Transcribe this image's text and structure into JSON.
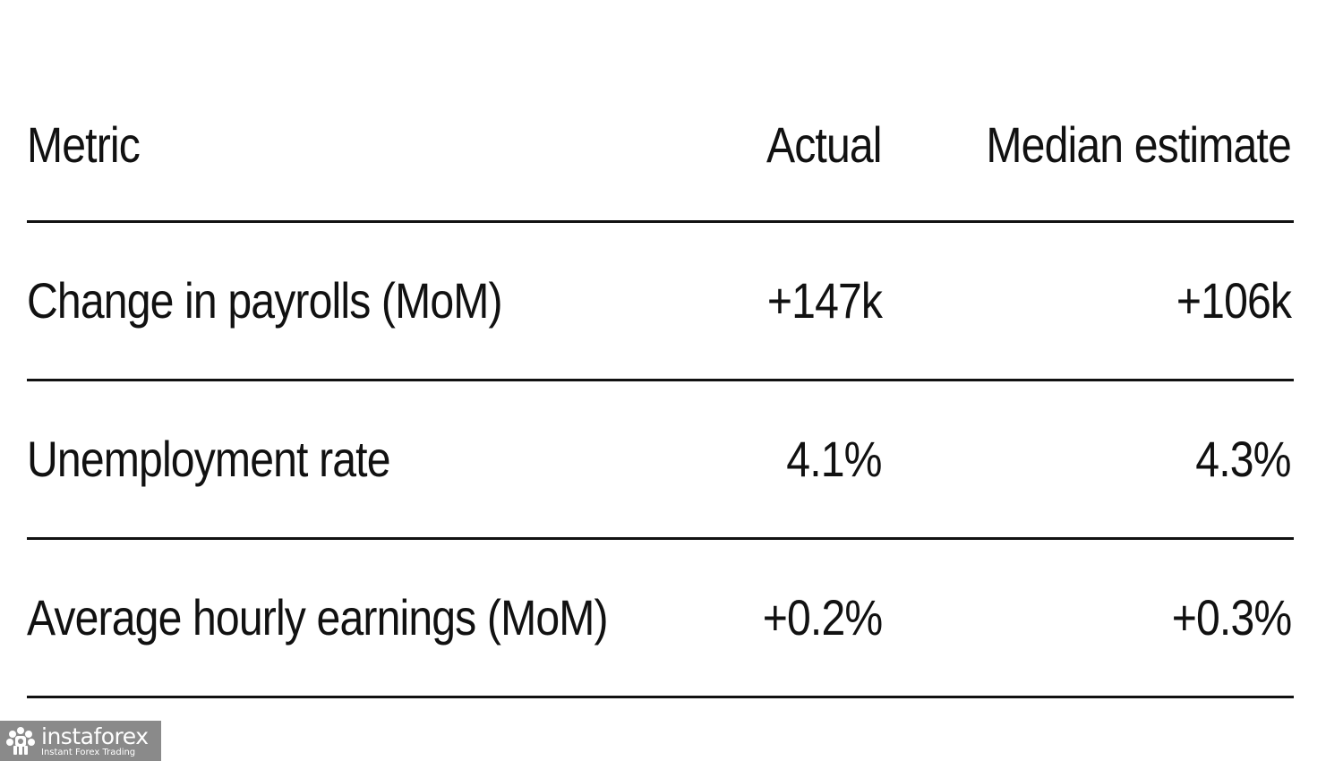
{
  "chart_data": {
    "type": "table",
    "columns": [
      "Metric",
      "Actual",
      "Median estimate"
    ],
    "rows": [
      {
        "metric": "Change in payrolls (MoM)",
        "actual": "+147k",
        "median": "+106k"
      },
      {
        "metric": "Unemployment rate",
        "actual": "4.1%",
        "median": "4.3%"
      },
      {
        "metric": "Average hourly earnings (MoM)",
        "actual": "+0.2%",
        "median": "+0.3%"
      }
    ]
  },
  "watermark": {
    "brand": "instaforex",
    "tagline": "Instant Forex Trading",
    "logo_icon": "gear-flower-icon",
    "background": "#8a8a8a"
  },
  "colors": {
    "text": "#111111",
    "rule": "#111111",
    "background": "#ffffff"
  }
}
